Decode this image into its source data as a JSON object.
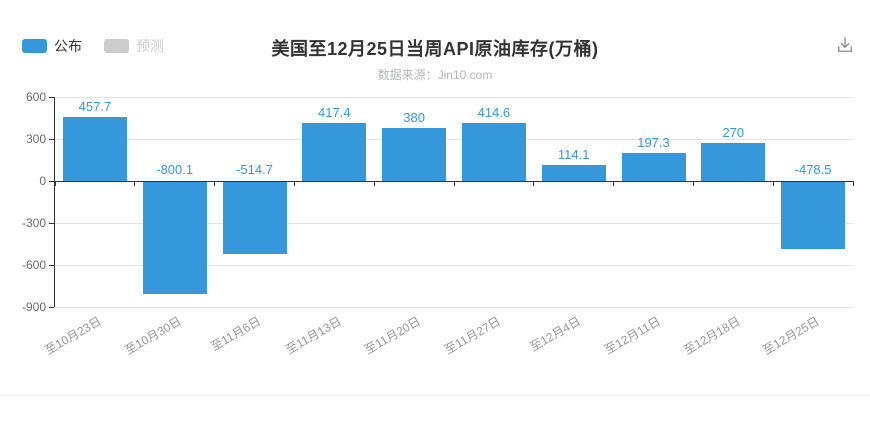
{
  "header": {
    "title": "美国至12月25日当周API原油库存(万桶)",
    "subtitle": "数据来源：Jin10.com"
  },
  "legend": {
    "items": [
      {
        "label": "公布",
        "color": "#3598db",
        "active": true
      },
      {
        "label": "预测",
        "color": "#cccccc",
        "active": false
      }
    ]
  },
  "toolbar": {
    "download_icon": "save-as-image-icon"
  },
  "chart_data": {
    "type": "bar",
    "title": "美国至12月25日当周API原油库存(万桶)",
    "source_note": "数据来源：Jin10.com",
    "categories": [
      "至10月23日",
      "至10月30日",
      "至11月6日",
      "至11月13日",
      "至11月20日",
      "至11月27日",
      "至12月4日",
      "至12月11日",
      "至12月18日",
      "至12月25日"
    ],
    "series": [
      {
        "name": "公布",
        "color": "#3598db",
        "values": [
          457.7,
          -800.1,
          -514.7,
          417.4,
          380,
          414.6,
          114.1,
          197.3,
          270,
          -478.5
        ],
        "value_labels": [
          "457.7",
          "-800.1",
          "-514.7",
          "417.4",
          "380",
          "414.6",
          "114.1",
          "197.3",
          "270",
          "-478.5"
        ]
      }
    ],
    "xlabel": "",
    "ylabel": "",
    "ylim": [
      -900,
      600
    ],
    "y_ticks": [
      600,
      300,
      0,
      -300,
      -600,
      -900
    ],
    "grid": true,
    "x_label_rotation_deg": 30,
    "legend_position": "top-left",
    "colors": {
      "bar": "#3598db",
      "value_label": "#3598db",
      "axis_line": "#333333",
      "grid_line": "#e4e4e4",
      "y_axis_label": "#676b70",
      "x_axis_label": "#94989d",
      "title": "#333333",
      "subtitle": "#b1b7bd",
      "legend_inactive": "#cccccc"
    }
  }
}
